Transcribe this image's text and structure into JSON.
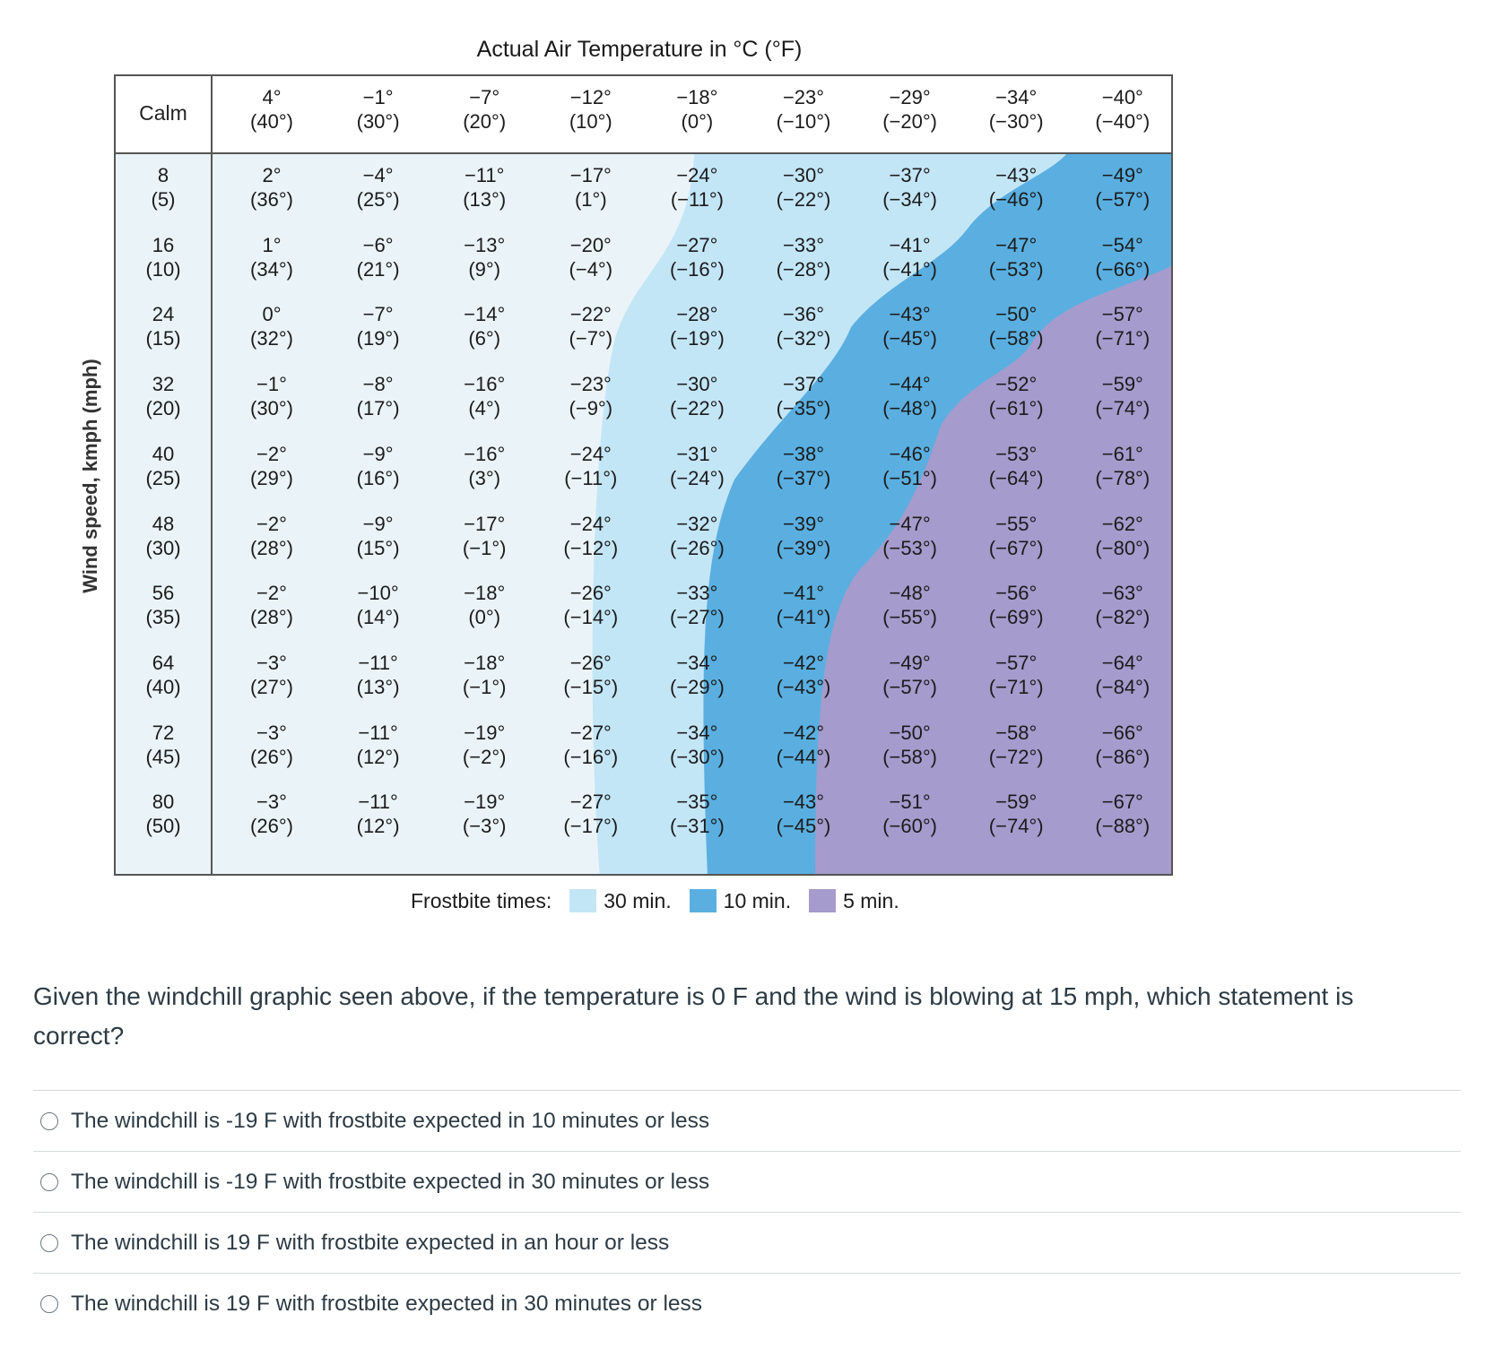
{
  "chart_data": {
    "type": "table",
    "title": "Actual Air Temperature in °C (°F)",
    "ylabel": "Wind speed, kmph (mph)",
    "calm_label": "Calm",
    "columns": [
      {
        "c": "4°",
        "f": "(40°)"
      },
      {
        "c": "−1°",
        "f": "(30°)"
      },
      {
        "c": "−7°",
        "f": "(20°)"
      },
      {
        "c": "−12°",
        "f": "(10°)"
      },
      {
        "c": "−18°",
        "f": "(0°)"
      },
      {
        "c": "−23°",
        "f": "(−10°)"
      },
      {
        "c": "−29°",
        "f": "(−20°)"
      },
      {
        "c": "−34°",
        "f": "(−30°)"
      },
      {
        "c": "−40°",
        "f": "(−40°)"
      }
    ],
    "rows": [
      {
        "kmph": "8",
        "mph": "(5)",
        "cells": [
          [
            "2°",
            "(36°)"
          ],
          [
            "−4°",
            "(25°)"
          ],
          [
            "−11°",
            "(13°)"
          ],
          [
            "−17°",
            "(1°)"
          ],
          [
            "−24°",
            "(−11°)"
          ],
          [
            "−30°",
            "(−22°)"
          ],
          [
            "−37°",
            "(−34°)"
          ],
          [
            "−43°",
            "(−46°)"
          ],
          [
            "−49°",
            "(−57°)"
          ]
        ]
      },
      {
        "kmph": "16",
        "mph": "(10)",
        "cells": [
          [
            "1°",
            "(34°)"
          ],
          [
            "−6°",
            "(21°)"
          ],
          [
            "−13°",
            "(9°)"
          ],
          [
            "−20°",
            "(−4°)"
          ],
          [
            "−27°",
            "(−16°)"
          ],
          [
            "−33°",
            "(−28°)"
          ],
          [
            "−41°",
            "(−41°)"
          ],
          [
            "−47°",
            "(−53°)"
          ],
          [
            "−54°",
            "(−66°)"
          ]
        ]
      },
      {
        "kmph": "24",
        "mph": "(15)",
        "cells": [
          [
            "0°",
            "(32°)"
          ],
          [
            "−7°",
            "(19°)"
          ],
          [
            "−14°",
            "(6°)"
          ],
          [
            "−22°",
            "(−7°)"
          ],
          [
            "−28°",
            "(−19°)"
          ],
          [
            "−36°",
            "(−32°)"
          ],
          [
            "−43°",
            "(−45°)"
          ],
          [
            "−50°",
            "(−58°)"
          ],
          [
            "−57°",
            "(−71°)"
          ]
        ]
      },
      {
        "kmph": "32",
        "mph": "(20)",
        "cells": [
          [
            "−1°",
            "(30°)"
          ],
          [
            "−8°",
            "(17°)"
          ],
          [
            "−16°",
            "(4°)"
          ],
          [
            "−23°",
            "(−9°)"
          ],
          [
            "−30°",
            "(−22°)"
          ],
          [
            "−37°",
            "(−35°)"
          ],
          [
            "−44°",
            "(−48°)"
          ],
          [
            "−52°",
            "(−61°)"
          ],
          [
            "−59°",
            "(−74°)"
          ]
        ]
      },
      {
        "kmph": "40",
        "mph": "(25)",
        "cells": [
          [
            "−2°",
            "(29°)"
          ],
          [
            "−9°",
            "(16°)"
          ],
          [
            "−16°",
            "(3°)"
          ],
          [
            "−24°",
            "(−11°)"
          ],
          [
            "−31°",
            "(−24°)"
          ],
          [
            "−38°",
            "(−37°)"
          ],
          [
            "−46°",
            "(−51°)"
          ],
          [
            "−53°",
            "(−64°)"
          ],
          [
            "−61°",
            "(−78°)"
          ]
        ]
      },
      {
        "kmph": "48",
        "mph": "(30)",
        "cells": [
          [
            "−2°",
            "(28°)"
          ],
          [
            "−9°",
            "(15°)"
          ],
          [
            "−17°",
            "(−1°)"
          ],
          [
            "−24°",
            "(−12°)"
          ],
          [
            "−32°",
            "(−26°)"
          ],
          [
            "−39°",
            "(−39°)"
          ],
          [
            "−47°",
            "(−53°)"
          ],
          [
            "−55°",
            "(−67°)"
          ],
          [
            "−62°",
            "(−80°)"
          ]
        ]
      },
      {
        "kmph": "56",
        "mph": "(35)",
        "cells": [
          [
            "−2°",
            "(28°)"
          ],
          [
            "−10°",
            "(14°)"
          ],
          [
            "−18°",
            "(0°)"
          ],
          [
            "−26°",
            "(−14°)"
          ],
          [
            "−33°",
            "(−27°)"
          ],
          [
            "−41°",
            "(−41°)"
          ],
          [
            "−48°",
            "(−55°)"
          ],
          [
            "−56°",
            "(−69°)"
          ],
          [
            "−63°",
            "(−82°)"
          ]
        ]
      },
      {
        "kmph": "64",
        "mph": "(40)",
        "cells": [
          [
            "−3°",
            "(27°)"
          ],
          [
            "−11°",
            "(13°)"
          ],
          [
            "−18°",
            "(−1°)"
          ],
          [
            "−26°",
            "(−15°)"
          ],
          [
            "−34°",
            "(−29°)"
          ],
          [
            "−42°",
            "(−43°)"
          ],
          [
            "−49°",
            "(−57°)"
          ],
          [
            "−57°",
            "(−71°)"
          ],
          [
            "−64°",
            "(−84°)"
          ]
        ]
      },
      {
        "kmph": "72",
        "mph": "(45)",
        "cells": [
          [
            "−3°",
            "(26°)"
          ],
          [
            "−11°",
            "(12°)"
          ],
          [
            "−19°",
            "(−2°)"
          ],
          [
            "−27°",
            "(−16°)"
          ],
          [
            "−34°",
            "(−30°)"
          ],
          [
            "−42°",
            "(−44°)"
          ],
          [
            "−50°",
            "(−58°)"
          ],
          [
            "−58°",
            "(−72°)"
          ],
          [
            "−66°",
            "(−86°)"
          ]
        ]
      },
      {
        "kmph": "80",
        "mph": "(50)",
        "cells": [
          [
            "−3°",
            "(26°)"
          ],
          [
            "−11°",
            "(12°)"
          ],
          [
            "−19°",
            "(−3°)"
          ],
          [
            "−27°",
            "(−17°)"
          ],
          [
            "−35°",
            "(−31°)"
          ],
          [
            "−43°",
            "(−45°)"
          ],
          [
            "−51°",
            "(−60°)"
          ],
          [
            "−59°",
            "(−74°)"
          ],
          [
            "−67°",
            "(−88°)"
          ]
        ]
      }
    ],
    "legend": {
      "label": "Frostbite times:",
      "items": [
        {
          "label": "30 min.",
          "color": "#c3e6f7"
        },
        {
          "label": "10 min.",
          "color": "#5aafe0"
        },
        {
          "label": "5 min.",
          "color": "#a59bcc"
        }
      ]
    },
    "colors": {
      "base": "#eaf4f8",
      "zone30": "#c3e6f7",
      "zone10": "#5aafe0",
      "zone5": "#a59bcc",
      "border": "#555555"
    }
  },
  "question": {
    "text": "Given the windchill graphic seen above, if the temperature is 0 F and the wind is blowing at 15 mph, which statement is correct?",
    "options": [
      "The windchill is -19 F with frostbite expected in 10 minutes or less",
      "The windchill is -19 F with frostbite expected in 30 minutes or less",
      "The windchill is 19 F with frostbite expected in an hour or less",
      "The windchill is 19 F with frostbite expected in 30 minutes or less"
    ]
  }
}
